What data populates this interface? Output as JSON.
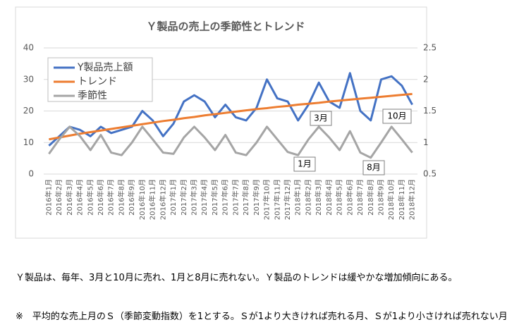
{
  "chart_data": {
    "type": "line",
    "title": "Ｙ製品の売上の季節性とトレンド",
    "categories": [
      "2016年1月",
      "2016年2月",
      "2016年3月",
      "2016年4月",
      "2016年5月",
      "2016年6月",
      "2016年7月",
      "2016年8月",
      "2016年9月",
      "2016年10月",
      "2016年11月",
      "2016年12月",
      "2017年1月",
      "2017年2月",
      "2017年3月",
      "2017年4月",
      "2017年5月",
      "2017年6月",
      "2017年7月",
      "2017年8月",
      "2017年9月",
      "2017年10月",
      "2017年11月",
      "2017年12月",
      "2018年1月",
      "2018年2月",
      "2018年3月",
      "2018年4月",
      "2018年5月",
      "2018年6月",
      "2018年7月",
      "2018年8月",
      "2018年9月",
      "2018年10月",
      "2018年11月",
      "2018年12月"
    ],
    "series": [
      {
        "name": "Y製品売上額",
        "color": "#4472c4",
        "values": [
          9,
          12,
          15,
          14,
          12,
          15,
          13,
          14,
          15,
          20,
          17,
          12,
          16,
          23,
          25,
          23,
          18,
          22,
          18,
          17,
          21,
          30,
          24,
          23,
          17,
          22,
          29,
          23,
          21,
          32,
          20,
          17,
          30,
          31,
          28,
          22
        ]
      },
      {
        "name": "トレンド",
        "color": "#ed7d31",
        "values": [
          11,
          11.6,
          12.2,
          12.8,
          13.3,
          13.8,
          14.3,
          14.8,
          15.3,
          15.8,
          16.3,
          16.8,
          17.2,
          17.7,
          18.1,
          18.6,
          19,
          19.4,
          19.8,
          20.2,
          20.6,
          20.9,
          21.3,
          21.6,
          22,
          22.3,
          22.6,
          23,
          23.3,
          23.6,
          23.9,
          24.2,
          24.5,
          24.8,
          25.1,
          25.4
        ]
      },
      {
        "name": "季節性",
        "color": "#a5a5a5",
        "axis": "y2",
        "values": [
          0.82,
          1.05,
          1.25,
          1.1,
          0.88,
          1.12,
          0.84,
          0.8,
          1.0,
          1.25,
          1.05,
          0.84,
          0.82,
          1.08,
          1.25,
          1.08,
          0.88,
          1.12,
          0.84,
          0.8,
          1.0,
          1.25,
          1.05,
          0.85,
          0.8,
          1.05,
          1.25,
          1.08,
          0.88,
          1.18,
          0.84,
          0.76,
          1.0,
          1.25,
          1.05,
          0.84
        ]
      }
    ],
    "annotations": [
      "3月",
      "10月",
      "1月",
      "8月"
    ],
    "ylim": [
      0,
      40
    ],
    "yticks": [
      0,
      10,
      20,
      30,
      40
    ],
    "y2lim": [
      0.5,
      2.5
    ],
    "y2ticks": [
      {
        "value": 0.5,
        "label": "0.5"
      },
      1,
      {
        "value": 1.5,
        "label": "1.5"
      },
      2,
      {
        "value": 2.5,
        "label": "2.5"
      }
    ],
    "grid": true,
    "legend": "upper left"
  },
  "text": [
    "Ｙ製品は、毎年、3月と10月に売れ、1月と8月に売れない。Ｙ製品のトレンドは緩やかな増加傾向にある。",
    "※　平均的な売上月のＳ（季節変動指数）を1とする。Ｓが1より大きければ売れる月、Ｓが1より小さければ売れない月"
  ]
}
